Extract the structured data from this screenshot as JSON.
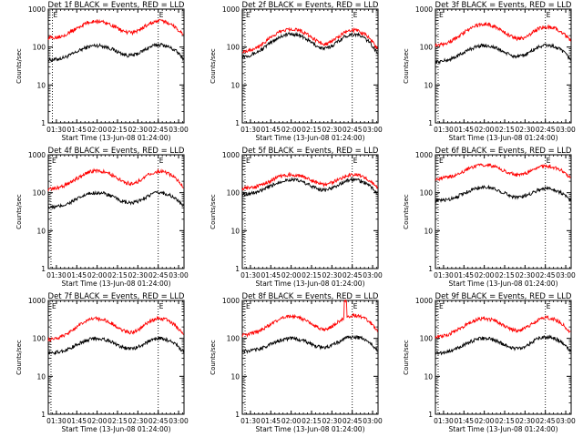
{
  "colors": {
    "events": "#000000",
    "lld": "#ff0000",
    "axis": "#000000",
    "background": "#ffffff"
  },
  "common": {
    "xlabel": "Start Time (13-Jun-08 01:24:00)",
    "ylabel": "Counts/sec",
    "xticks": [
      "01:30",
      "01:45",
      "02:00",
      "02:15",
      "02:30",
      "02:45",
      "03:00"
    ],
    "yticks": [
      "1",
      "10",
      "100",
      "1000"
    ]
  },
  "chart_data": [
    {
      "type": "line",
      "title": "Det 1f BLACK = Events, RED = LLD",
      "xlabel": "Start Time (13-Jun-08 01:24:00)",
      "ylabel": "Counts/sec",
      "yscale": "log",
      "ylim": [
        1,
        1000
      ],
      "xlim": [
        "01:24",
        "03:04"
      ],
      "markers": [
        {
          "time": "01:27",
          "label": "E"
        },
        {
          "time": "02:45",
          "label": "E"
        }
      ],
      "series": [
        {
          "name": "Events",
          "color": "#000000",
          "base": 45,
          "peaks": [
            110,
            115
          ],
          "end": 45
        },
        {
          "name": "LLD",
          "color": "#ff0000",
          "base": 170,
          "peaks": [
            480,
            480
          ],
          "end": 190
        }
      ]
    },
    {
      "type": "line",
      "title": "Det 2f BLACK = Events, RED = LLD",
      "xlabel": "Start Time (13-Jun-08 01:24:00)",
      "ylabel": "Counts/sec",
      "yscale": "log",
      "ylim": [
        1,
        1000
      ],
      "xlim": [
        "01:24",
        "03:04"
      ],
      "markers": [
        {
          "time": "01:26",
          "label": "E"
        },
        {
          "time": "02:45",
          "label": "E"
        }
      ],
      "series": [
        {
          "name": "Events",
          "color": "#000000",
          "base": 55,
          "peaks": [
            220,
            220
          ],
          "end": 45
        },
        {
          "name": "LLD",
          "color": "#ff0000",
          "base": 75,
          "peaks": [
            300,
            280
          ],
          "end": 60
        }
      ]
    },
    {
      "type": "line",
      "title": "Det 3f BLACK = Events, RED = LLD",
      "xlabel": "Start Time (13-Jun-08 01:24:00)",
      "ylabel": "Counts/sec",
      "yscale": "log",
      "ylim": [
        1,
        1000
      ],
      "xlim": [
        "01:24",
        "03:04"
      ],
      "markers": [
        {
          "time": "01:26",
          "label": "E"
        },
        {
          "time": "02:45",
          "label": "E"
        }
      ],
      "series": [
        {
          "name": "Events",
          "color": "#000000",
          "base": 40,
          "peaks": [
            110,
            110
          ],
          "end": 45
        },
        {
          "name": "LLD",
          "color": "#ff0000",
          "base": 110,
          "peaks": [
            400,
            330
          ],
          "end": 150
        }
      ]
    },
    {
      "type": "line",
      "title": "Det 4f BLACK = Events, RED = LLD",
      "xlabel": "Start Time (13-Jun-08 01:24:00)",
      "ylabel": "Counts/sec",
      "yscale": "log",
      "ylim": [
        1,
        1000
      ],
      "xlim": [
        "01:24",
        "03:04"
      ],
      "markers": [
        {
          "time": "01:26",
          "label": "E"
        },
        {
          "time": "02:45",
          "label": "E"
        }
      ],
      "series": [
        {
          "name": "Events",
          "color": "#000000",
          "base": 40,
          "peaks": [
            100,
            100
          ],
          "end": 40
        },
        {
          "name": "LLD",
          "color": "#ff0000",
          "base": 120,
          "peaks": [
            380,
            360
          ],
          "end": 130
        }
      ]
    },
    {
      "type": "line",
      "title": "Det 5f BLACK = Events, RED = LLD",
      "xlabel": "Start Time (13-Jun-08 01:24:00)",
      "ylabel": "Counts/sec",
      "yscale": "log",
      "ylim": [
        1,
        1000
      ],
      "xlim": [
        "01:24",
        "03:04"
      ],
      "markers": [
        {
          "time": "01:26",
          "label": "E"
        },
        {
          "time": "02:45",
          "label": "E"
        }
      ],
      "series": [
        {
          "name": "Events",
          "color": "#000000",
          "base": 90,
          "peaks": [
            220,
            220
          ],
          "end": 90
        },
        {
          "name": "LLD",
          "color": "#ff0000",
          "base": 130,
          "peaks": [
            300,
            300
          ],
          "end": 120
        }
      ]
    },
    {
      "type": "line",
      "title": "Det 6f BLACK = Events, RED = LLD",
      "xlabel": "Start Time (13-Jun-08 01:24:00)",
      "ylabel": "Counts/sec",
      "yscale": "log",
      "ylim": [
        1,
        1000
      ],
      "xlim": [
        "01:24",
        "03:04"
      ],
      "markers": [
        {
          "time": "01:26",
          "label": "E"
        },
        {
          "time": "02:45",
          "label": "E"
        }
      ],
      "series": [
        {
          "name": "Events",
          "color": "#000000",
          "base": 60,
          "peaks": [
            140,
            130
          ],
          "end": 60
        },
        {
          "name": "LLD",
          "color": "#ff0000",
          "base": 230,
          "peaks": [
            550,
            500
          ],
          "end": 250
        }
      ]
    },
    {
      "type": "line",
      "title": "Det 7f BLACK = Events, RED = LLD",
      "xlabel": "Start Time (13-Jun-08 01:24:00)",
      "ylabel": "Counts/sec",
      "yscale": "log",
      "ylim": [
        1,
        1000
      ],
      "xlim": [
        "01:24",
        "03:04"
      ],
      "markers": [
        {
          "time": "01:26",
          "label": "E"
        },
        {
          "time": "02:45",
          "label": "E"
        }
      ],
      "series": [
        {
          "name": "Events",
          "color": "#000000",
          "base": 40,
          "peaks": [
            100,
            100
          ],
          "end": 40
        },
        {
          "name": "LLD",
          "color": "#ff0000",
          "base": 90,
          "peaks": [
            330,
            330
          ],
          "end": 110
        }
      ]
    },
    {
      "type": "line",
      "title": "Det 8f BLACK = Events, RED = LLD",
      "xlabel": "Start Time (13-Jun-08 01:24:00)",
      "ylabel": "Counts/sec",
      "yscale": "log",
      "ylim": [
        1,
        1000
      ],
      "xlim": [
        "01:24",
        "03:04"
      ],
      "markers": [
        {
          "time": "01:26",
          "label": "E"
        },
        {
          "time": "02:45",
          "label": "E"
        }
      ],
      "series": [
        {
          "name": "Events",
          "color": "#000000",
          "base": 45,
          "peaks": [
            100,
            110
          ],
          "end": 45
        },
        {
          "name": "LLD",
          "color": "#ff0000",
          "base": 120,
          "peaks": [
            380,
            400
          ],
          "end": 140,
          "spike_time": "02:40",
          "spike_value": 1000
        }
      ]
    },
    {
      "type": "line",
      "title": "Det 9f BLACK = Events, RED = LLD",
      "xlabel": "Start Time (13-Jun-08 01:24:00)",
      "ylabel": "Counts/sec",
      "yscale": "log",
      "ylim": [
        1,
        1000
      ],
      "xlim": [
        "01:24",
        "03:04"
      ],
      "markers": [
        {
          "time": "01:26",
          "label": "E"
        },
        {
          "time": "02:45",
          "label": "E"
        }
      ],
      "series": [
        {
          "name": "Events",
          "color": "#000000",
          "base": 40,
          "peaks": [
            100,
            110
          ],
          "end": 40
        },
        {
          "name": "LLD",
          "color": "#ff0000",
          "base": 110,
          "peaks": [
            330,
            350
          ],
          "end": 120
        }
      ]
    }
  ]
}
